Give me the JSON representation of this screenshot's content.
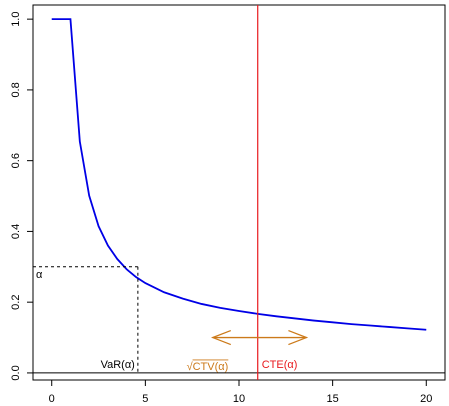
{
  "chart_data": {
    "type": "line",
    "title": "",
    "xlabel": "",
    "ylabel": "",
    "xlim": [
      -1,
      21
    ],
    "ylim": [
      -0.02,
      1.04
    ],
    "x_ticks": [
      0,
      5,
      10,
      15,
      20
    ],
    "y_ticks": [
      0.0,
      0.2,
      0.4,
      0.6,
      0.8,
      1.0
    ],
    "x_tick_labels": [
      "0",
      "5",
      "10",
      "15",
      "20"
    ],
    "y_tick_labels": [
      "0.0",
      "0.2",
      "0.4",
      "0.6",
      "0.8",
      "1.0"
    ],
    "grid": false,
    "series": [
      {
        "color": "#0000e6",
        "x": [
          0,
          1,
          1.5,
          2,
          2.5,
          3,
          3.5,
          4,
          4.5,
          5,
          6,
          7,
          8,
          9,
          10,
          11,
          12,
          13,
          14,
          15,
          16,
          17,
          18,
          19,
          20
        ],
        "y": [
          1.0,
          1.0,
          0.654,
          0.501,
          0.415,
          0.36,
          0.322,
          0.293,
          0.271,
          0.254,
          0.228,
          0.21,
          0.195,
          0.184,
          0.175,
          0.167,
          0.16,
          0.154,
          0.148,
          0.143,
          0.138,
          0.134,
          0.13,
          0.126,
          0.122
        ]
      }
    ],
    "annotations": {
      "alpha": {
        "label": "α",
        "y": 0.3
      },
      "var": {
        "label": "VaR(α)",
        "x": 4.6,
        "y": 0.3
      },
      "cte": {
        "label": "CTE(α)",
        "x": 11,
        "color": "#e8191d"
      },
      "ctv": {
        "label": "√CTV(α)",
        "x_label": 7.2,
        "arrow_x": [
          8.6,
          13.6
        ],
        "arrow_y": 0.1,
        "color": "#cc7a1a"
      },
      "baseline_y": 0.0
    }
  }
}
